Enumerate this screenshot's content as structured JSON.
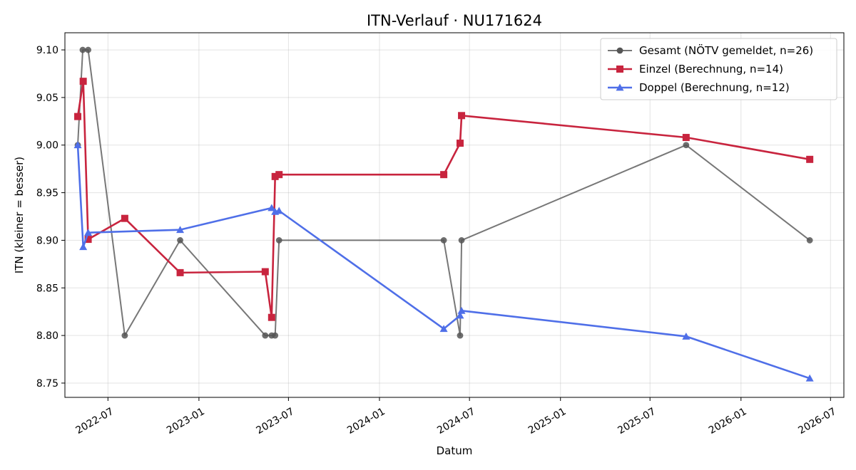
{
  "chart_data": {
    "type": "line",
    "title": "ITN-Verlauf · NU171624",
    "xlabel": "Datum",
    "ylabel": "ITN  (kleiner = besser)",
    "xlim": [
      "2022-04-05",
      "2026-07-28"
    ],
    "ylim": [
      8.735,
      9.118
    ],
    "x_ticks": [
      "2022-07",
      "2023-01",
      "2023-07",
      "2024-01",
      "2024-07",
      "2025-01",
      "2025-07",
      "2026-01",
      "2026-07"
    ],
    "y_ticks": [
      "8.75",
      "8.80",
      "8.85",
      "8.90",
      "8.95",
      "9.00",
      "9.05",
      "9.10"
    ],
    "grid": true,
    "legend_position": "top-right",
    "series": [
      {
        "name": "Gesamt (NÖTV gemeldet, n=26)",
        "color": "#555555",
        "marker": "circle",
        "points": [
          [
            "2022-05-01",
            9.0
          ],
          [
            "2022-05-11",
            9.1
          ],
          [
            "2022-05-22",
            9.1
          ],
          [
            "2022-08-04",
            8.8
          ],
          [
            "2022-11-24",
            8.9
          ],
          [
            "2023-05-15",
            8.8
          ],
          [
            "2023-05-28",
            8.8
          ],
          [
            "2023-06-04",
            8.8
          ],
          [
            "2023-06-12",
            8.9
          ],
          [
            "2024-05-10",
            8.9
          ],
          [
            "2024-06-12",
            8.8
          ],
          [
            "2024-06-15",
            8.9
          ],
          [
            "2025-09-12",
            9.0
          ],
          [
            "2026-05-20",
            8.9
          ]
        ]
      },
      {
        "name": "Einzel (Berechnung, n=14)",
        "color": "#c8243e",
        "marker": "square",
        "points": [
          [
            "2022-05-01",
            9.03
          ],
          [
            "2022-05-12",
            9.067
          ],
          [
            "2022-05-22",
            8.901
          ],
          [
            "2022-08-04",
            8.923
          ],
          [
            "2022-11-24",
            8.866
          ],
          [
            "2023-05-15",
            8.867
          ],
          [
            "2023-05-28",
            8.819
          ],
          [
            "2023-06-04",
            8.967
          ],
          [
            "2023-06-12",
            8.969
          ],
          [
            "2024-05-10",
            8.969
          ],
          [
            "2024-06-12",
            9.002
          ],
          [
            "2024-06-15",
            9.031
          ],
          [
            "2025-09-12",
            9.008
          ],
          [
            "2026-05-20",
            8.985
          ]
        ]
      },
      {
        "name": "Doppel (Berechnung, n=12)",
        "color": "#4f6fe8",
        "marker": "triangle",
        "points": [
          [
            "2022-05-01",
            9.0
          ],
          [
            "2022-05-12",
            8.893
          ],
          [
            "2022-05-22",
            8.908
          ],
          [
            "2022-11-24",
            8.911
          ],
          [
            "2023-05-28",
            8.934
          ],
          [
            "2023-06-04",
            8.93
          ],
          [
            "2023-06-12",
            8.931
          ],
          [
            "2024-05-10",
            8.807
          ],
          [
            "2024-06-12",
            8.821
          ],
          [
            "2024-06-15",
            8.826
          ],
          [
            "2025-09-12",
            8.799
          ],
          [
            "2026-05-20",
            8.755
          ]
        ]
      }
    ]
  }
}
